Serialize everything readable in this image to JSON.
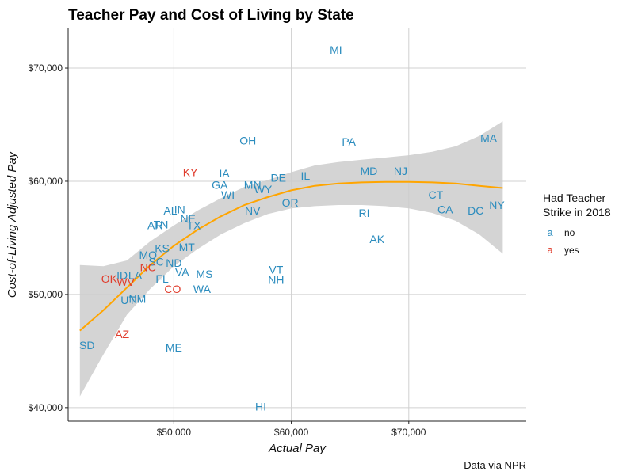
{
  "chart_data": {
    "type": "scatter",
    "title": "Teacher Pay and Cost of Living by State",
    "xlabel": "Actual Pay",
    "ylabel": "Cost-of-Living Adjusted Pay",
    "caption": "Data via NPR",
    "xlim": [
      41000,
      80000
    ],
    "ylim": [
      38800,
      73500
    ],
    "x_ticks": [
      50000,
      60000,
      70000
    ],
    "y_ticks": [
      40000,
      50000,
      60000,
      70000
    ],
    "x_tick_labels": [
      "$50,000",
      "$60,000",
      "$70,000"
    ],
    "y_tick_labels": [
      "$40,000",
      "$50,000",
      "$60,000",
      "$70,000"
    ],
    "grid": true,
    "legend": {
      "title_lines": [
        "Had Teacher",
        "Strike in 2018"
      ],
      "position": "right",
      "key_glyph": "a",
      "entries": [
        {
          "label": "no",
          "color": "#2b8cbe"
        },
        {
          "label": "yes",
          "color": "#e03c2c"
        }
      ]
    },
    "colors": {
      "no": "#2b8cbe",
      "yes": "#e03c2c",
      "smooth": "#ffa500",
      "ribbon": "#cccccc"
    },
    "points": [
      {
        "label": "MI",
        "x": 63800,
        "y": 71600,
        "strike": "no"
      },
      {
        "label": "OH",
        "x": 56300,
        "y": 63600,
        "strike": "no"
      },
      {
        "label": "PA",
        "x": 64900,
        "y": 63500,
        "strike": "no"
      },
      {
        "label": "MA",
        "x": 76800,
        "y": 63800,
        "strike": "no"
      },
      {
        "label": "KY",
        "x": 51400,
        "y": 60800,
        "strike": "yes"
      },
      {
        "label": "IA",
        "x": 54300,
        "y": 60700,
        "strike": "no"
      },
      {
        "label": "MD",
        "x": 66600,
        "y": 60900,
        "strike": "no"
      },
      {
        "label": "NJ",
        "x": 69300,
        "y": 60900,
        "strike": "no"
      },
      {
        "label": "DE",
        "x": 58900,
        "y": 60300,
        "strike": "no"
      },
      {
        "label": "IL",
        "x": 61200,
        "y": 60500,
        "strike": "no"
      },
      {
        "label": "GA",
        "x": 53900,
        "y": 59700,
        "strike": "no"
      },
      {
        "label": "MN",
        "x": 56700,
        "y": 59700,
        "strike": "no"
      },
      {
        "label": "WY",
        "x": 57600,
        "y": 59300,
        "strike": "no"
      },
      {
        "label": "WI",
        "x": 54600,
        "y": 58800,
        "strike": "no"
      },
      {
        "label": "CT",
        "x": 72300,
        "y": 58800,
        "strike": "no"
      },
      {
        "label": "OR",
        "x": 59900,
        "y": 58100,
        "strike": "no"
      },
      {
        "label": "NY",
        "x": 77500,
        "y": 57900,
        "strike": "no"
      },
      {
        "label": "AL",
        "x": 49700,
        "y": 57400,
        "strike": "no"
      },
      {
        "label": "IN",
        "x": 50500,
        "y": 57500,
        "strike": "no"
      },
      {
        "label": "NV",
        "x": 56700,
        "y": 57400,
        "strike": "no"
      },
      {
        "label": "CA",
        "x": 73100,
        "y": 57500,
        "strike": "no"
      },
      {
        "label": "DC",
        "x": 75700,
        "y": 57400,
        "strike": "no"
      },
      {
        "label": "RI",
        "x": 66200,
        "y": 57200,
        "strike": "no"
      },
      {
        "label": "NE",
        "x": 51200,
        "y": 56700,
        "strike": "no"
      },
      {
        "label": "AR",
        "x": 48400,
        "y": 56100,
        "strike": "no"
      },
      {
        "label": "TN",
        "x": 48900,
        "y": 56200,
        "strike": "no"
      },
      {
        "label": "TX",
        "x": 51700,
        "y": 56100,
        "strike": "no"
      },
      {
        "label": "AK",
        "x": 67300,
        "y": 54900,
        "strike": "no"
      },
      {
        "label": "KS",
        "x": 49000,
        "y": 54100,
        "strike": "no"
      },
      {
        "label": "MT",
        "x": 51100,
        "y": 54200,
        "strike": "no"
      },
      {
        "label": "MO",
        "x": 47800,
        "y": 53500,
        "strike": "no"
      },
      {
        "label": "SC",
        "x": 48500,
        "y": 52900,
        "strike": "no"
      },
      {
        "label": "ND",
        "x": 50000,
        "y": 52800,
        "strike": "no"
      },
      {
        "label": "VA",
        "x": 50700,
        "y": 52000,
        "strike": "no"
      },
      {
        "label": "MS",
        "x": 52600,
        "y": 51800,
        "strike": "no"
      },
      {
        "label": "VT",
        "x": 58700,
        "y": 52200,
        "strike": "no"
      },
      {
        "label": "NH",
        "x": 58700,
        "y": 51300,
        "strike": "no"
      },
      {
        "label": "NC",
        "x": 47800,
        "y": 52400,
        "strike": "yes"
      },
      {
        "label": "ID",
        "x": 45600,
        "y": 51700,
        "strike": "no"
      },
      {
        "label": "LA",
        "x": 46700,
        "y": 51700,
        "strike": "no"
      },
      {
        "label": "OK",
        "x": 44500,
        "y": 51400,
        "strike": "yes"
      },
      {
        "label": "WV",
        "x": 45900,
        "y": 51100,
        "strike": "yes"
      },
      {
        "label": "FL",
        "x": 49000,
        "y": 51400,
        "strike": "no"
      },
      {
        "label": "CO",
        "x": 49900,
        "y": 50500,
        "strike": "yes"
      },
      {
        "label": "WA",
        "x": 52400,
        "y": 50500,
        "strike": "no"
      },
      {
        "label": "UT",
        "x": 46100,
        "y": 49500,
        "strike": "no"
      },
      {
        "label": "NM",
        "x": 46900,
        "y": 49600,
        "strike": "no"
      },
      {
        "label": "AZ",
        "x": 45600,
        "y": 46500,
        "strike": "yes"
      },
      {
        "label": "SD",
        "x": 42600,
        "y": 45500,
        "strike": "no"
      },
      {
        "label": "ME",
        "x": 50000,
        "y": 45300,
        "strike": "no"
      },
      {
        "label": "HI",
        "x": 57400,
        "y": 40100,
        "strike": "no"
      }
    ],
    "smooth": {
      "x": [
        42000,
        44000,
        46000,
        48000,
        50000,
        52000,
        54000,
        56000,
        58000,
        60000,
        62000,
        64000,
        66000,
        68000,
        70000,
        72000,
        74000,
        76000,
        78000
      ],
      "y": [
        46800,
        48600,
        50600,
        52600,
        54300,
        55700,
        56900,
        57900,
        58600,
        59200,
        59600,
        59800,
        59900,
        59950,
        59950,
        59900,
        59800,
        59600,
        59400
      ],
      "lower": [
        41000,
        44700,
        48200,
        50500,
        52500,
        54000,
        55300,
        56300,
        57100,
        57600,
        57800,
        57900,
        57900,
        57800,
        57600,
        57200,
        56500,
        55300,
        53600
      ],
      "upper": [
        52600,
        52500,
        53000,
        54700,
        56100,
        57400,
        58500,
        59500,
        60100,
        60800,
        61400,
        61700,
        61900,
        62100,
        62300,
        62600,
        63100,
        64000,
        65300
      ]
    }
  }
}
